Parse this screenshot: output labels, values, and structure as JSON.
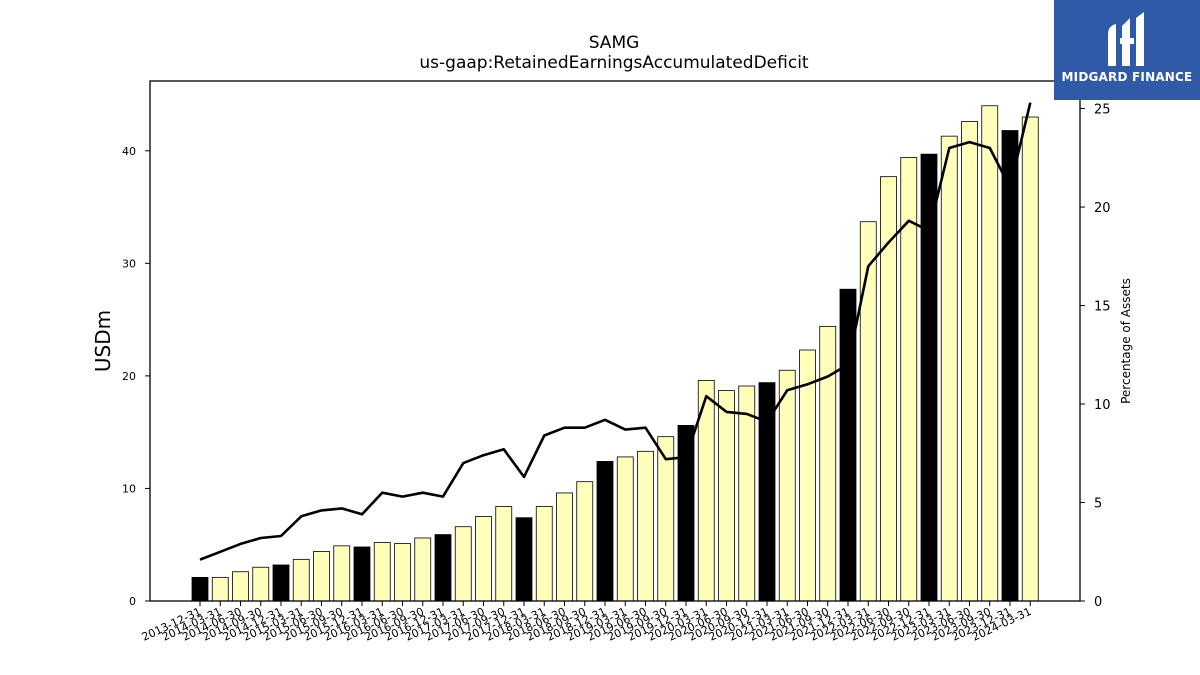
{
  "chart_data": {
    "type": "bar",
    "title": "SAMG",
    "subtitle": "us-gaap:RetainedEarningsAccumulatedDeficit",
    "ylabel": "USDm",
    "ylabel_right": "Percentage of Assets",
    "ylim": [
      0,
      46.2
    ],
    "ylim_right": [
      0,
      26.4
    ],
    "yticks": [
      0,
      10,
      20,
      30,
      40
    ],
    "yticks_right": [
      0,
      5,
      10,
      15,
      20,
      25
    ],
    "grid": false,
    "categories": [
      "2013-12-31",
      "2014-03-31",
      "2014-06-30",
      "2014-09-30",
      "2014-12-31",
      "2015-03-31",
      "2015-06-30",
      "2015-09-30",
      "2015-12-31",
      "2016-03-31",
      "2016-06-30",
      "2016-09-30",
      "2016-12-31",
      "2017-03-31",
      "2017-06-30",
      "2017-09-30",
      "2017-12-31",
      "2018-03-31",
      "2018-06-30",
      "2018-09-30",
      "2018-12-31",
      "2019-03-31",
      "2019-06-30",
      "2019-09-30",
      "2019-12-31",
      "2020-03-31",
      "2020-06-30",
      "2020-09-30",
      "2020-12-31",
      "2021-03-31",
      "2021-06-30",
      "2021-09-30",
      "2021-12-31",
      "2022-03-31",
      "2022-06-30",
      "2022-09-30",
      "2022-12-31",
      "2023-03-31",
      "2023-06-30",
      "2023-09-30",
      "2023-12-31",
      "2024-03-31"
    ],
    "series": [
      {
        "kind": "bar",
        "axis": "left",
        "values": [
          2.1,
          2.1,
          2.6,
          3.0,
          3.2,
          3.7,
          4.4,
          4.9,
          4.8,
          5.2,
          5.1,
          5.6,
          5.9,
          6.6,
          7.5,
          8.4,
          7.4,
          8.4,
          9.6,
          10.6,
          12.4,
          12.8,
          13.3,
          14.6,
          15.6,
          19.6,
          18.7,
          19.1,
          19.4,
          20.5,
          22.3,
          24.4,
          27.7,
          33.7,
          37.7,
          39.4,
          39.7,
          41.3,
          42.6,
          44.0,
          41.8,
          43.0
        ],
        "highlight_indices": [
          0,
          4,
          8,
          12,
          16,
          20,
          24,
          28,
          32,
          36,
          40
        ],
        "highlight_color": "#000000",
        "color": "#ffffbb"
      },
      {
        "kind": "line",
        "axis": "right",
        "color": "#000000",
        "values": [
          2.1,
          2.5,
          2.9,
          3.2,
          3.3,
          4.3,
          4.6,
          4.7,
          4.4,
          5.5,
          5.3,
          5.5,
          5.3,
          7.0,
          7.4,
          7.7,
          6.3,
          8.4,
          8.8,
          8.8,
          9.2,
          8.7,
          8.8,
          7.2,
          7.3,
          10.4,
          9.6,
          9.5,
          9.1,
          10.7,
          11.0,
          11.4,
          12.0,
          17.0,
          18.2,
          19.3,
          18.8,
          23.0,
          23.3,
          23.0,
          21.0,
          25.3
        ]
      }
    ]
  },
  "logo": {
    "text": "MIDGARD FINANCE",
    "icon": "midgard-m-logo-icon"
  }
}
